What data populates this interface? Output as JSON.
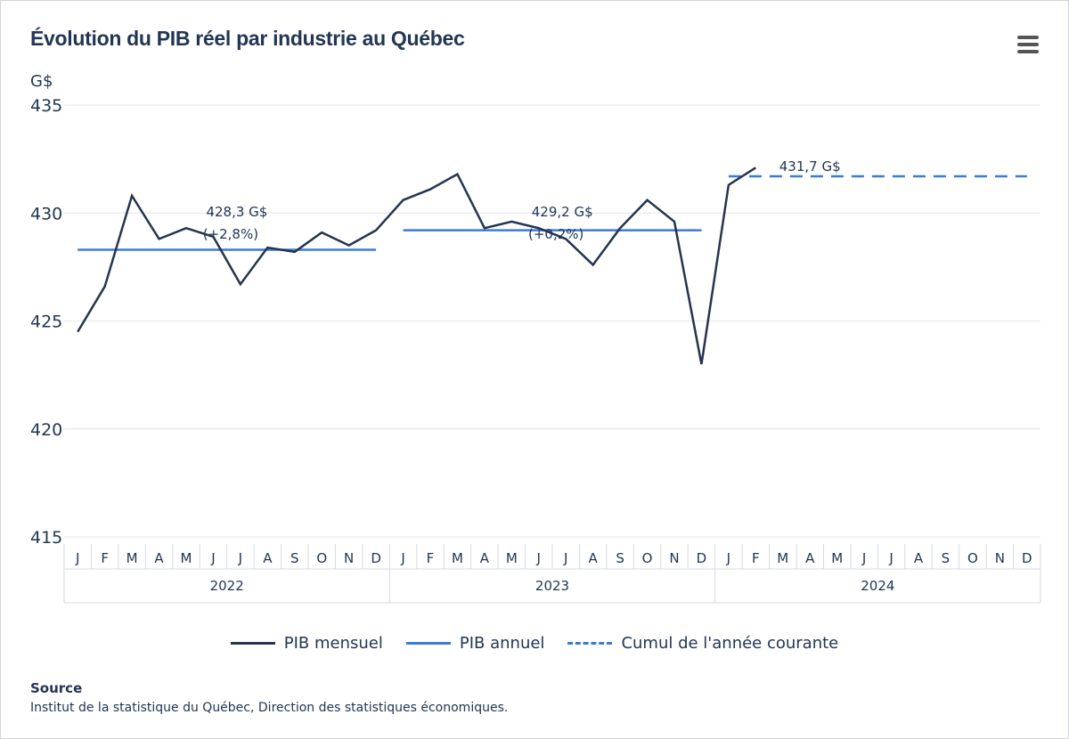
{
  "title": "Évolution du PIB réel par industrie au Québec",
  "menu_icon": "hamburger-menu-icon",
  "colors": {
    "monthly": "#26344f",
    "annual": "#3a7bd5",
    "grid": "#e3e6ea",
    "text": "#223654"
  },
  "chart_data": {
    "type": "line",
    "title": "Évolution du PIB réel par industrie au Québec",
    "ylabel": "G$",
    "ylim": [
      415,
      435
    ],
    "yticks": [
      415,
      420,
      425,
      430,
      435
    ],
    "grid": true,
    "legend_placement": "bottom",
    "month_labels": [
      "J",
      "F",
      "M",
      "A",
      "M",
      "J",
      "J",
      "A",
      "S",
      "O",
      "N",
      "D"
    ],
    "years": [
      "2022",
      "2023",
      "2024"
    ],
    "series": [
      {
        "name": "PIB mensuel",
        "style": "solid",
        "color": "#26344f",
        "values": [
          424.5,
          426.6,
          430.8,
          428.8,
          429.3,
          428.9,
          426.7,
          428.4,
          428.2,
          429.1,
          428.5,
          429.2,
          430.6,
          431.1,
          431.8,
          429.3,
          429.6,
          429.3,
          428.8,
          427.6,
          429.3,
          430.6,
          429.6,
          423.0,
          431.3,
          432.1
        ]
      },
      {
        "name": "PIB annuel",
        "style": "solid",
        "color": "#3a7bd5",
        "segments": [
          {
            "year": "2022",
            "value": 428.3,
            "label": "428,3 G$",
            "sublabel": "(+2,8%)"
          },
          {
            "year": "2023",
            "value": 429.2,
            "label": "429,2 G$",
            "sublabel": "(+0,2%)"
          }
        ]
      },
      {
        "name": "Cumul de l'année courante",
        "style": "dashed",
        "color": "#3a7bd5",
        "segments": [
          {
            "year": "2024",
            "value": 431.7,
            "label": "431,7 G$"
          }
        ]
      }
    ]
  },
  "source": {
    "heading": "Source",
    "text": "Institut de la statistique du Québec, Direction des statistiques économiques."
  }
}
